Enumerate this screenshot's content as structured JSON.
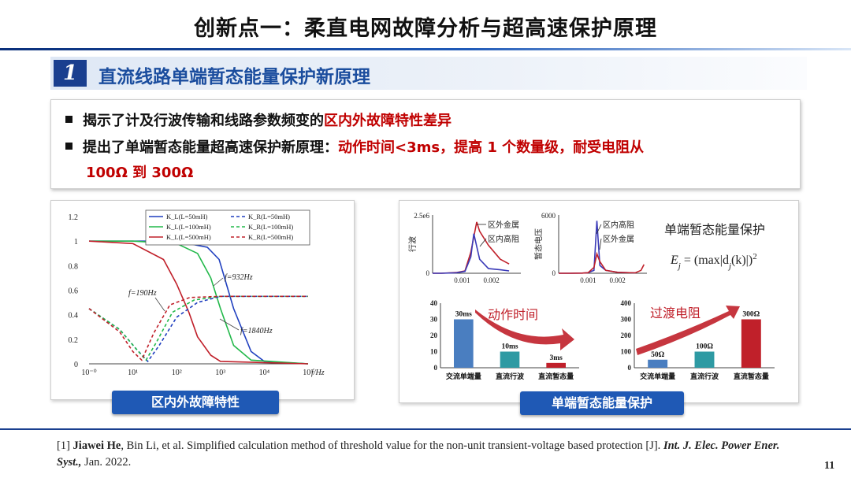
{
  "slide": {
    "title": "创新点一：柔直电网故障分析与超高速保护原理",
    "section_number": "1",
    "section_title": "直流线路单端暂态能量保护新原理",
    "bullets": [
      {
        "plain": "揭示了计及行波传输和线路参数频变的",
        "highlight": "区内外故障特性差异"
      },
      {
        "plain": "提出了单端暂态能量超高速保护新原理：",
        "highlight": "动作时间<3ms，提高 1 个数量级，耐受电阻从",
        "highlight2": "100Ω 到 300Ω"
      }
    ],
    "left_caption": "区内外故障特性",
    "right_caption": "单端暂态能量保护",
    "reference_prefix": "[1] ",
    "reference_author1": "Jiawei He",
    "reference_middle": ", Bin Li, et al. Simplified calculation method of threshold value for the non-unit transient-voltage based protection [J]. ",
    "reference_journal": "Int. J. Elec. Power Ener. Syst.,",
    "reference_date": " Jan. 2022.",
    "page_number": "11"
  },
  "chart_data": [
    {
      "type": "line",
      "x_scale": "log",
      "xlabel": "f/Hz",
      "x_ticks": [
        "10⁻⁰",
        "10¹",
        "10²",
        "10³",
        "10⁴",
        "10⁵"
      ],
      "ylim": [
        0,
        1.2
      ],
      "y_ticks": [
        "0",
        "0.2",
        "0.4",
        "0.6",
        "0.8",
        "1",
        "1.2"
      ],
      "legend": [
        {
          "label": "K_L(L=50mH)",
          "color": "#1f3fbf",
          "dash": false
        },
        {
          "label": "K_R(L=50mH)",
          "color": "#1f3fbf",
          "dash": true
        },
        {
          "label": "K_L(L=100mH)",
          "color": "#22b84a",
          "dash": false
        },
        {
          "label": "K_R(L=100mH)",
          "color": "#22b84a",
          "dash": true
        },
        {
          "label": "K_L(L=500mH)",
          "color": "#c0202a",
          "dash": false
        },
        {
          "label": "K_R(L=500mH)",
          "color": "#c0202a",
          "dash": true
        }
      ],
      "series": [
        {
          "name": "K_L(L=50mH)",
          "color": "#1f3fbf",
          "dash": false,
          "x": [
            1,
            10,
            100,
            500,
            932,
            2000,
            5000,
            10000,
            100000
          ],
          "y": [
            1,
            1,
            1,
            0.95,
            0.85,
            0.45,
            0.1,
            0.02,
            0
          ]
        },
        {
          "name": "K_L(L=100mH)",
          "color": "#22b84a",
          "dash": false,
          "x": [
            1,
            10,
            100,
            300,
            600,
            1000,
            2000,
            5000,
            100000
          ],
          "y": [
            1,
            1,
            0.98,
            0.9,
            0.7,
            0.45,
            0.15,
            0.03,
            0
          ]
        },
        {
          "name": "K_L(L=500mH)",
          "color": "#c0202a",
          "dash": false,
          "x": [
            1,
            10,
            50,
            100,
            190,
            300,
            600,
            1000,
            100000
          ],
          "y": [
            1,
            0.98,
            0.85,
            0.65,
            0.42,
            0.22,
            0.07,
            0.02,
            0
          ]
        },
        {
          "name": "K_R(L=50mH)",
          "color": "#1f3fbf",
          "dash": true,
          "x": [
            1,
            5,
            12,
            22,
            40,
            100,
            300,
            1000,
            100000
          ],
          "y": [
            0.45,
            0.28,
            0.12,
            0.02,
            0.15,
            0.38,
            0.5,
            0.55,
            0.55
          ]
        },
        {
          "name": "K_R(L=100mH)",
          "color": "#22b84a",
          "dash": true,
          "x": [
            1,
            5,
            12,
            20,
            35,
            80,
            250,
            1000,
            100000
          ],
          "y": [
            0.45,
            0.28,
            0.12,
            0.03,
            0.18,
            0.42,
            0.52,
            0.55,
            0.55
          ]
        },
        {
          "name": "K_R(L=500mH)",
          "color": "#c0202a",
          "dash": true,
          "x": [
            1,
            5,
            10,
            16,
            30,
            70,
            200,
            1000,
            100000
          ],
          "y": [
            0.45,
            0.26,
            0.1,
            0.03,
            0.25,
            0.48,
            0.54,
            0.55,
            0.55
          ]
        }
      ],
      "annotations": [
        "f=932Hz",
        "f=190Hz",
        "f=1840Hz"
      ]
    },
    {
      "type": "line",
      "ylabel": "行波",
      "y_top_label": "2.5e6",
      "y_ticks": [
        "0"
      ],
      "x_ticks": [
        "0.001",
        "0.002"
      ],
      "xlim": [
        0,
        0.003
      ],
      "ylim": [
        0,
        2500000
      ],
      "legend": [
        "区外金属",
        "区内高阻"
      ],
      "series": [
        {
          "name": "区外金属",
          "color": "#c0202a",
          "x": [
            0,
            0.0003,
            0.0008,
            0.0011,
            0.0013,
            0.0015,
            0.0016,
            0.0019,
            0.0023,
            0.0026
          ],
          "y": [
            0,
            0,
            30000,
            100000,
            900000,
            2200000,
            1800000,
            1200000,
            600000,
            400000
          ]
        },
        {
          "name": "区内高阻",
          "color": "#3a3ab8",
          "x": [
            0,
            0.0003,
            0.0008,
            0.0011,
            0.0013,
            0.0014,
            0.0016,
            0.0019,
            0.0023,
            0.0026
          ],
          "y": [
            0,
            0,
            20000,
            80000,
            700000,
            1700000,
            600000,
            200000,
            150000,
            100000
          ]
        }
      ]
    },
    {
      "type": "line",
      "ylabel": "暂态电压",
      "y_top_label": "6000",
      "y_ticks": [
        "0"
      ],
      "x_ticks": [
        "0.001",
        "0.002"
      ],
      "xlim": [
        0,
        0.003
      ],
      "ylim": [
        0,
        6000
      ],
      "legend": [
        "区内高阻",
        "区外金属"
      ],
      "series": [
        {
          "name": "区内高阻",
          "color": "#3a3ab8",
          "x": [
            0,
            0.0004,
            0.0008,
            0.001,
            0.0012,
            0.0013,
            0.0014,
            0.0016,
            0.002,
            0.0026
          ],
          "y": [
            0,
            0,
            20,
            60,
            300,
            5400,
            800,
            300,
            100,
            40
          ]
        },
        {
          "name": "区外金属",
          "color": "#c0202a",
          "x": [
            0,
            0.0004,
            0.0008,
            0.001,
            0.0012,
            0.0013,
            0.0014,
            0.0016,
            0.002,
            0.0026,
            0.0028,
            0.0029
          ],
          "y": [
            0,
            0,
            20,
            60,
            600,
            2000,
            1200,
            300,
            100,
            40,
            300,
            900
          ]
        }
      ]
    },
    {
      "type": "bar",
      "title": "动作时间",
      "categories": [
        "交流单端量",
        "直流行波",
        "直流暂态量"
      ],
      "values": [
        30,
        10,
        3
      ],
      "data_labels": [
        "30ms",
        "10ms",
        "3ms"
      ],
      "colors": [
        "#4a7ec0",
        "#2e9aa3",
        "#c0202a"
      ],
      "ylim": [
        0,
        40
      ],
      "y_ticks": [
        "0",
        "10",
        "20",
        "30",
        "40"
      ]
    },
    {
      "type": "bar",
      "title": "过渡电阻",
      "categories": [
        "交流单端量",
        "直流行波",
        "直流暂态量"
      ],
      "values": [
        50,
        100,
        300
      ],
      "data_labels": [
        "50Ω",
        "100Ω",
        "300Ω"
      ],
      "colors": [
        "#4a7ec0",
        "#2e9aa3",
        "#c0202a"
      ],
      "ylim": [
        0,
        400
      ],
      "y_ticks": [
        "0",
        "100",
        "200",
        "300",
        "400"
      ]
    }
  ],
  "formula": {
    "heading": "单端暂态能量保护",
    "lhs": "E",
    "sub": "j",
    "rhs_open": " = (max|d",
    "rhs_sub": "j",
    "rhs_close": "(k)|)",
    "exponent": "2"
  }
}
